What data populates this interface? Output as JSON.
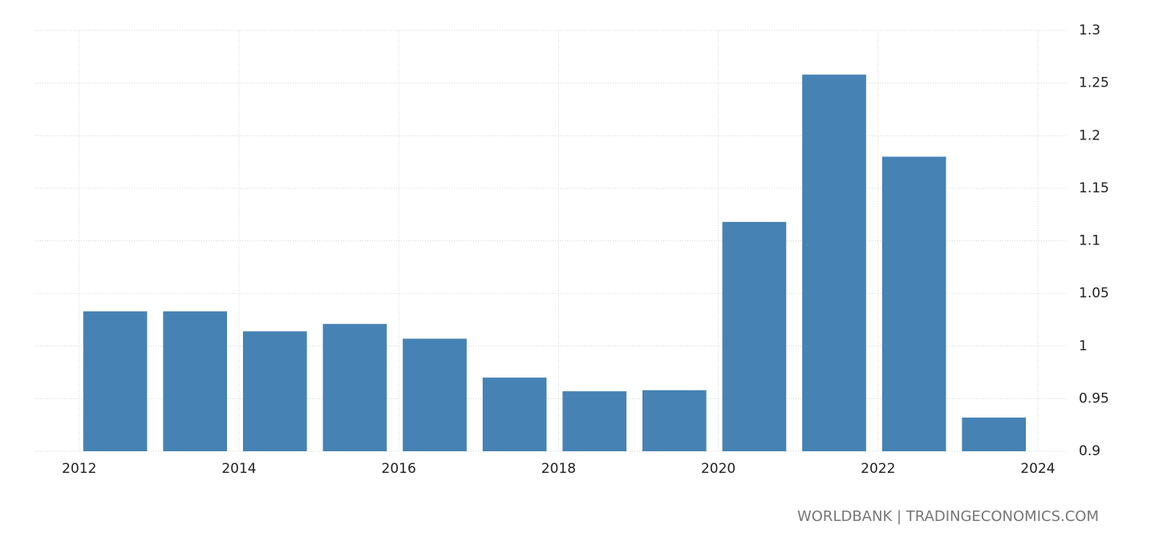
{
  "chart_data": {
    "type": "bar",
    "x": [
      2012,
      2013,
      2014,
      2015,
      2016,
      2017,
      2018,
      2019,
      2020,
      2021,
      2022,
      2023
    ],
    "values": [
      1.033,
      1.033,
      1.014,
      1.021,
      1.007,
      0.97,
      0.957,
      0.958,
      1.118,
      1.258,
      1.18,
      0.932
    ],
    "color": "#4682b4",
    "xlim": [
      2011.45,
      2024
    ],
    "xticks": [
      2012,
      2014,
      2016,
      2018,
      2020,
      2022,
      2024
    ],
    "ylim": [
      0.9,
      1.3
    ],
    "yticks": [
      0.9,
      0.95,
      1,
      1.05,
      1.1,
      1.15,
      1.2,
      1.25,
      1.3
    ],
    "grid": true,
    "source": "WORLDBANK | TRADINGECONOMICS.COM"
  }
}
